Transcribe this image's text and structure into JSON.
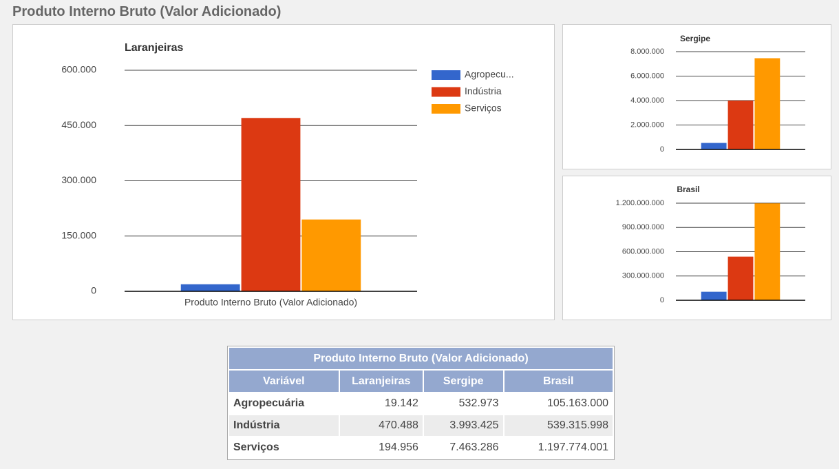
{
  "header": {
    "title": "Produto Interno Bruto (Valor Adicionado)"
  },
  "chart_data": [
    {
      "type": "bar",
      "title": "Laranjeiras",
      "categories": [
        "Produto Interno Bruto (Valor Adicionado)"
      ],
      "series": [
        {
          "name": "Agropecu...",
          "color": "#3366cc",
          "values": [
            19142
          ]
        },
        {
          "name": "Indústria",
          "color": "#dc3912",
          "values": [
            470488
          ]
        },
        {
          "name": "Serviços",
          "color": "#ff9900",
          "values": [
            194956
          ]
        }
      ],
      "ylim": [
        0,
        600000
      ],
      "yticks": [
        0,
        {
          "value": 150000,
          "label": "150.000"
        },
        {
          "value": 300000,
          "label": "300.000"
        },
        {
          "value": 450000,
          "label": "450.000"
        },
        {
          "value": 600000,
          "label": "600.000"
        }
      ],
      "grid": true,
      "legend": "right"
    },
    {
      "type": "bar",
      "title": "Sergipe",
      "categories": [
        null
      ],
      "series": [
        {
          "color": "#3366cc",
          "values": [
            532973
          ]
        },
        {
          "color": "#dc3912",
          "values": [
            3993425
          ]
        },
        {
          "color": "#ff9900",
          "values": [
            7463286
          ]
        }
      ],
      "ylim": [
        0,
        8000000
      ],
      "yticks": [
        0,
        {
          "value": 2000000,
          "label": "2.000.000"
        },
        {
          "value": 4000000,
          "label": "4.000.000"
        },
        {
          "value": 6000000,
          "label": "6.000.000"
        },
        {
          "value": 8000000,
          "label": "8.000.000"
        }
      ],
      "grid": true
    },
    {
      "type": "bar",
      "title": "Brasil",
      "categories": [
        null
      ],
      "series": [
        {
          "color": "#3366cc",
          "values": [
            105163000
          ]
        },
        {
          "color": "#dc3912",
          "values": [
            539315998
          ]
        },
        {
          "color": "#ff9900",
          "values": [
            1197774001
          ]
        }
      ],
      "ylim": [
        0,
        1200000000
      ],
      "yticks": [
        0,
        {
          "value": 300000000,
          "label": "300.000.000"
        },
        {
          "value": 600000000,
          "label": "600.000.000"
        },
        {
          "value": 900000000,
          "label": "900.000.000"
        },
        {
          "value": 1200000000,
          "label": "1.200.000.000"
        }
      ],
      "grid": true
    }
  ],
  "table": {
    "title": "Produto Interno Bruto (Valor Adicionado)",
    "columns": [
      "Variável",
      "Laranjeiras",
      "Sergipe",
      "Brasil"
    ],
    "rows": [
      [
        "Agropecuária",
        "19.142",
        "532.973",
        "105.163.000"
      ],
      [
        "Indústria",
        "470.488",
        "3.993.425",
        "539.315.998"
      ],
      [
        "Serviços",
        "194.956",
        "7.463.286",
        "1.197.774.001"
      ]
    ]
  }
}
